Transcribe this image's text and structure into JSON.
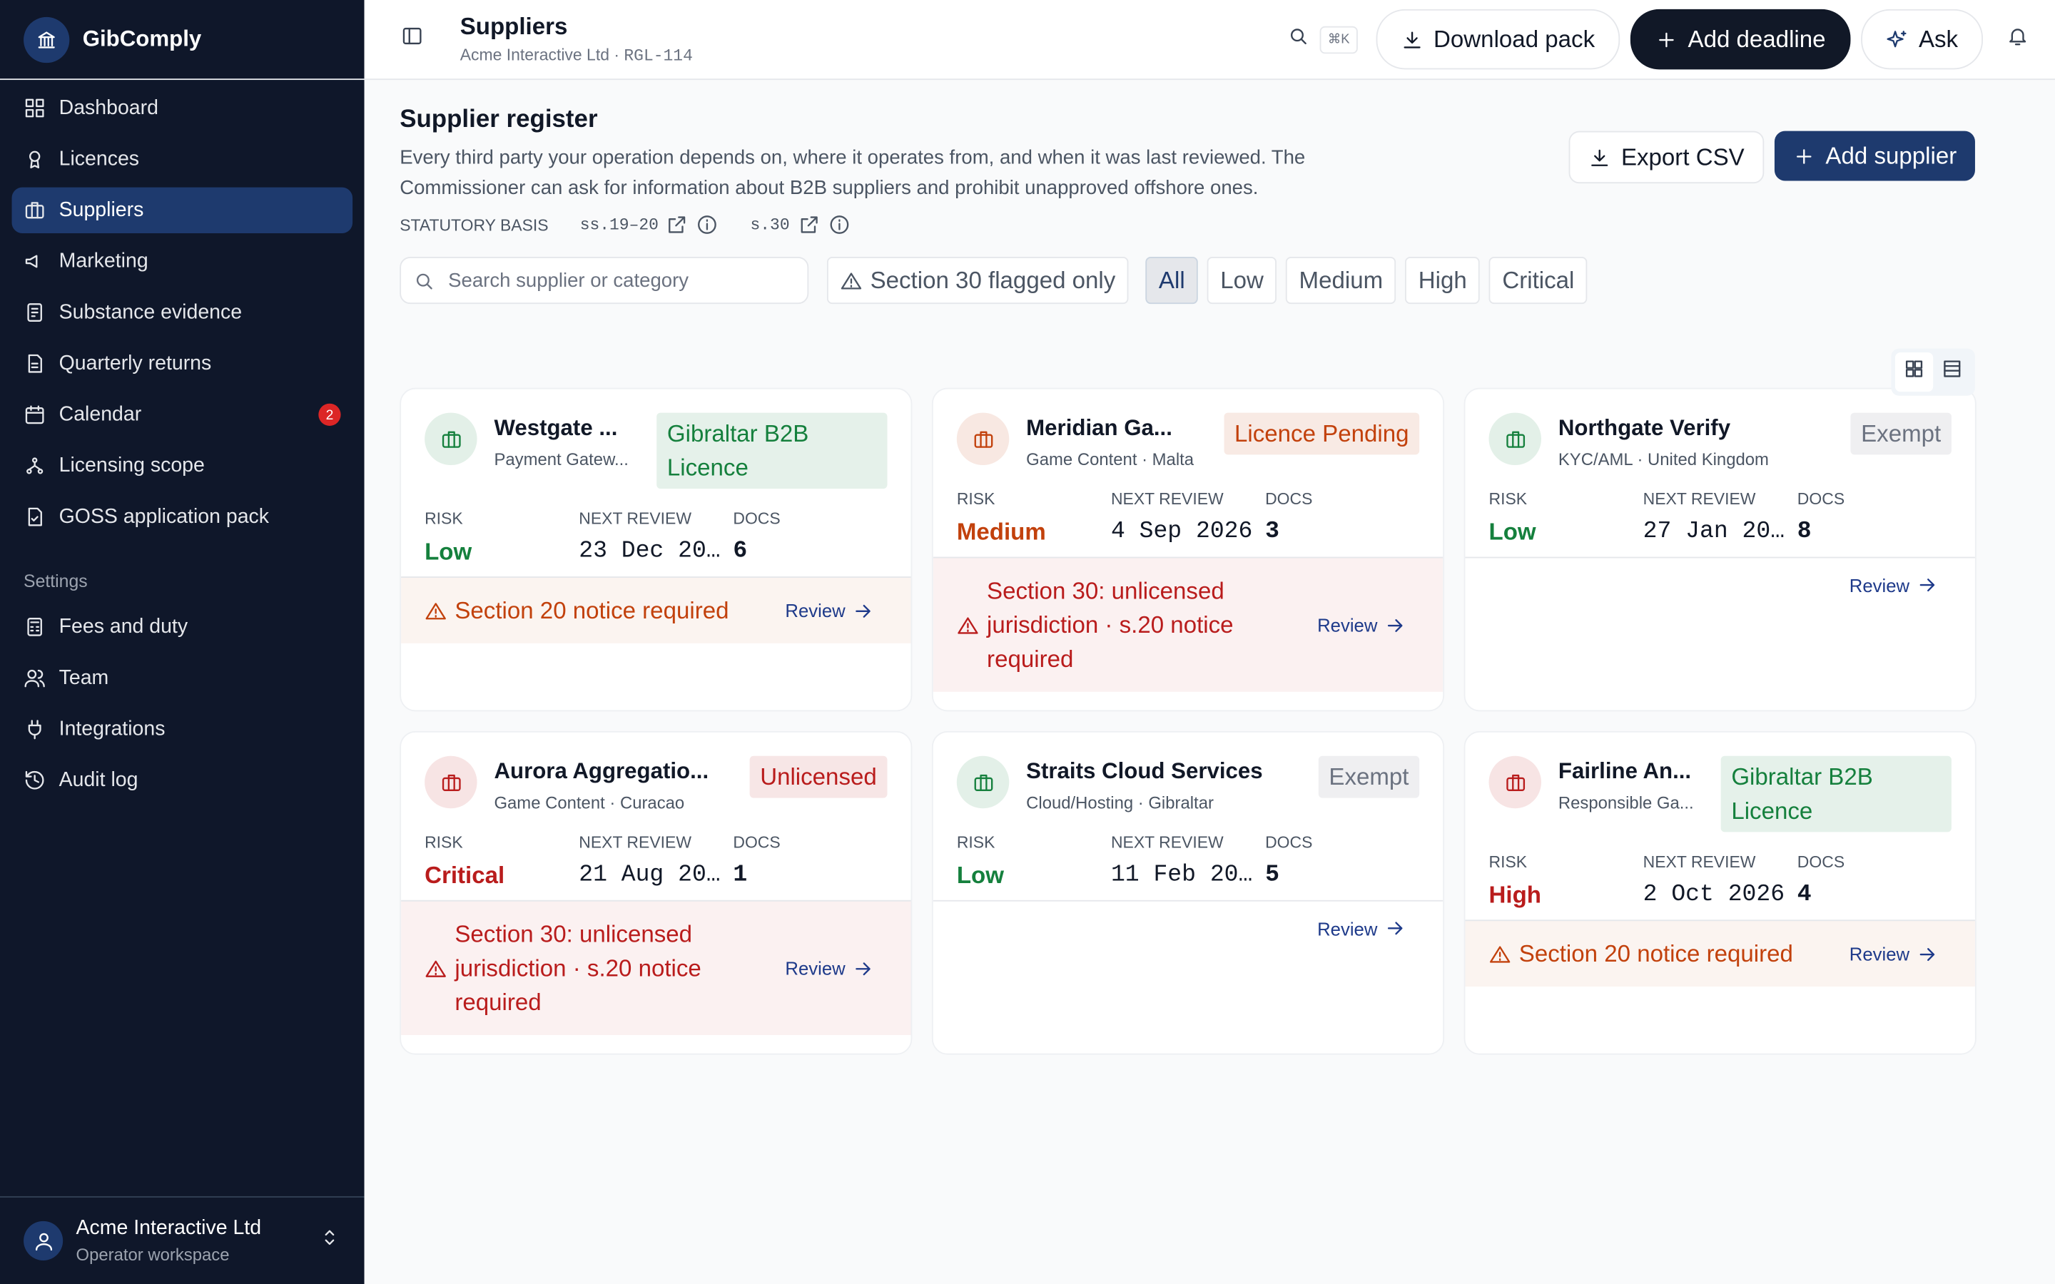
{
  "sidebar": {
    "brand": "GibComply",
    "nav": [
      "Dashboard",
      "Licences",
      "Suppliers",
      "Marketing",
      "Substance evidence",
      "Quarterly returns",
      "Calendar",
      "Licensing scope",
      "GOSS application pack"
    ],
    "active_index": 2,
    "badge_index": 6,
    "badge": "2",
    "settings_title": "Settings",
    "settings": [
      "Fees and duty",
      "Team",
      "Integrations",
      "Audit log"
    ],
    "workspace": {
      "name": "Acme Interactive Ltd",
      "role": "Operator workspace"
    }
  },
  "header": {
    "title": "Suppliers",
    "subtitle": "Acme Interactive Ltd ·",
    "ref": "RGL-114",
    "shortcut": "⌘K",
    "download": "Download pack",
    "add": "Add deadline",
    "ask": "Ask"
  },
  "register": {
    "title": "Supplier register",
    "description": "Every third party your operation depends on, where it operates from, and when it was last reviewed. The Commissioner can ask for information about B2B suppliers and prohibit unapproved offshore ones.",
    "basis_label": "STATUTORY BASIS",
    "basis_refs": [
      "ss.19–20",
      "s.30"
    ],
    "export": "Export CSV",
    "add": "Add supplier",
    "search_placeholder": "Search supplier or category",
    "flag_filter": "Section 30 flagged only",
    "filters": [
      "All",
      "Low",
      "Medium",
      "High",
      "Critical"
    ],
    "active_filter": 0,
    "stat_labels": [
      "RISK",
      "NEXT REVIEW",
      "DOCS"
    ],
    "review_label": "Review",
    "cards": [
      {
        "name": "Westgate ...",
        "meta": "Payment Gatew...",
        "badge": "Gibraltar B2B Licence",
        "badge_color": "#15803d",
        "icon_color": "#15803d",
        "risk": "Low",
        "risk_color": "#15803d",
        "next_review": "23 Dec 20…",
        "docs": "6",
        "alert": "Section 20 notice required",
        "alert_color": "#c2410c"
      },
      {
        "name": "Meridian Ga...",
        "meta": "Game Content · Malta",
        "badge": "Licence Pending",
        "badge_color": "#c2410c",
        "icon_color": "#c2410c",
        "risk": "Medium",
        "risk_color": "#c2410c",
        "next_review": "4 Sep 2026",
        "docs": "3",
        "alert": "Section 30: unlicensed jurisdiction · s.20 notice required",
        "alert_color": "#b91c1c"
      },
      {
        "name": "Northgate Verify",
        "meta": "KYC/AML · United Kingdom",
        "badge": "Exempt",
        "badge_color": "#6b7280",
        "icon_color": "#15803d",
        "risk": "Low",
        "risk_color": "#15803d",
        "next_review": "27 Jan 20…",
        "docs": "8"
      },
      {
        "name": "Aurora Aggregatio...",
        "meta": "Game Content · Curacao",
        "badge": "Unlicensed",
        "badge_color": "#b91c1c",
        "icon_color": "#b91c1c",
        "risk": "Critical",
        "risk_color": "#b91c1c",
        "next_review": "21 Aug 20…",
        "docs": "1",
        "alert": "Section 30: unlicensed jurisdiction · s.20 notice required",
        "alert_color": "#b91c1c"
      },
      {
        "name": "Straits Cloud Services",
        "meta": "Cloud/Hosting · Gibraltar",
        "badge": "Exempt",
        "badge_color": "#6b7280",
        "icon_color": "#15803d",
        "risk": "Low",
        "risk_color": "#15803d",
        "next_review": "11 Feb 20…",
        "docs": "5"
      },
      {
        "name": "Fairline An...",
        "meta": "Responsible Ga...",
        "badge": "Gibraltar B2B Licence",
        "badge_color": "#15803d",
        "icon_color": "#b91c1c",
        "risk": "High",
        "risk_color": "#b91c1c",
        "next_review": "2 Oct 2026",
        "docs": "4",
        "alert": "Section 20 notice required",
        "alert_color": "#c2410c"
      }
    ]
  }
}
